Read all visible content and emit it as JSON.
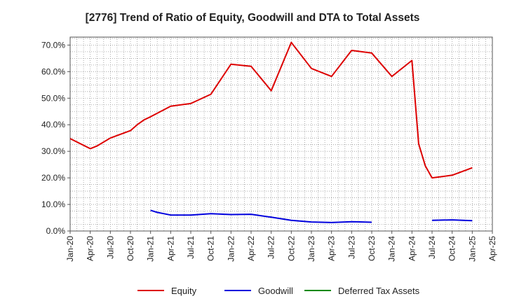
{
  "chart_data": {
    "type": "line",
    "title": "[2776]  Trend of Ratio of Equity, Goodwill and DTA to Total Assets",
    "xlabel": "",
    "ylabel": "",
    "x_ticks": [
      "Jan-20",
      "Apr-20",
      "Jul-20",
      "Oct-20",
      "Jan-21",
      "Apr-21",
      "Jul-21",
      "Oct-21",
      "Jan-22",
      "Apr-22",
      "Jul-22",
      "Oct-22",
      "Jan-23",
      "Apr-23",
      "Jul-23",
      "Oct-23",
      "Jan-24",
      "Apr-24",
      "Jul-24",
      "Oct-24",
      "Jan-25",
      "Apr-25"
    ],
    "y_ticks": [
      "0.0%",
      "10.0%",
      "20.0%",
      "30.0%",
      "40.0%",
      "50.0%",
      "60.0%",
      "70.0%"
    ],
    "ylim": [
      0,
      73
    ],
    "grid": true,
    "legend_position": "bottom",
    "series": [
      {
        "name": "Equity",
        "color": "#dd0000",
        "points": [
          [
            "2020-01",
            34.8
          ],
          [
            "2020-04",
            31.0
          ],
          [
            "2020-05",
            32.0
          ],
          [
            "2020-07",
            35.0
          ],
          [
            "2020-10",
            37.8
          ],
          [
            "2020-11",
            40.0
          ],
          [
            "2020-12",
            41.8
          ],
          [
            "2021-01",
            43.0
          ],
          [
            "2021-04",
            47.0
          ],
          [
            "2021-07",
            48.0
          ],
          [
            "2021-10",
            51.5
          ],
          [
            "2022-01",
            62.8
          ],
          [
            "2022-04",
            62.0
          ],
          [
            "2022-07",
            52.8
          ],
          [
            "2022-10",
            71.0
          ],
          [
            "2023-01",
            61.2
          ],
          [
            "2023-04",
            58.2
          ],
          [
            "2023-07",
            68.0
          ],
          [
            "2023-10",
            67.0
          ],
          [
            "2024-01",
            58.2
          ],
          [
            "2024-04",
            64.2
          ],
          [
            "2024-05",
            32.8
          ],
          [
            "2024-06",
            24.5
          ],
          [
            "2024-07",
            20.0
          ],
          [
            "2024-10",
            21.0
          ],
          [
            "2025-01",
            23.8
          ]
        ]
      },
      {
        "name": "Goodwill",
        "color": "#0000dd",
        "segments": [
          [
            [
              "2021-01",
              7.8
            ],
            [
              "2021-02",
              7.0
            ],
            [
              "2021-04",
              6.0
            ],
            [
              "2021-07",
              6.0
            ],
            [
              "2021-10",
              6.5
            ],
            [
              "2022-01",
              6.2
            ],
            [
              "2022-04",
              6.3
            ],
            [
              "2022-07",
              5.2
            ],
            [
              "2022-10",
              4.0
            ],
            [
              "2023-01",
              3.4
            ],
            [
              "2023-04",
              3.2
            ],
            [
              "2023-07",
              3.5
            ],
            [
              "2023-10",
              3.3
            ]
          ],
          [
            [
              "2024-07",
              4.0
            ],
            [
              "2024-10",
              4.2
            ],
            [
              "2025-01",
              3.9
            ]
          ]
        ]
      },
      {
        "name": "Deferred Tax Assets",
        "color": "#008800",
        "points": []
      }
    ]
  }
}
